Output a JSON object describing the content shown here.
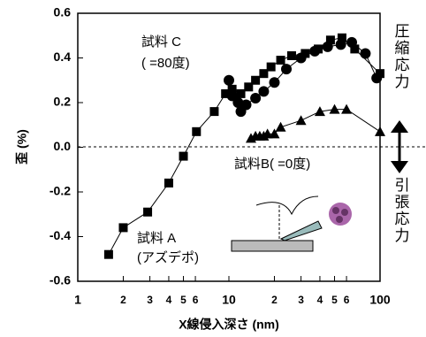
{
  "chart_data": {
    "type": "scatter",
    "y_label": "歪 (%)",
    "x_label": "X線侵入深さ (nm)",
    "log_x": true,
    "color": "#000000",
    "xlim": [
      1,
      100
    ],
    "ylim": [
      -0.6,
      0.6
    ],
    "xticks": [
      1,
      2,
      3,
      4,
      5,
      6,
      10,
      {
        "value": 20,
        "label": "2"
      },
      {
        "value": 30,
        "label": "3"
      },
      {
        "value": 40,
        "label": "4"
      },
      {
        "value": 50,
        "label": "5"
      },
      {
        "value": 60,
        "label": "6"
      },
      100
    ],
    "yticks": [
      -0.6,
      -0.4,
      -0.2,
      {
        "value": 0,
        "label": "0.0"
      },
      0.2,
      0.4,
      0.6
    ],
    "series": [
      {
        "marker": "square",
        "x": [
          1.6,
          2,
          2.9,
          4,
          5,
          6.1,
          8,
          9.5,
          10.5,
          12,
          13.5,
          15,
          17,
          19,
          22,
          26,
          32,
          39,
          47,
          56,
          68,
          100
        ],
        "values": [
          -0.48,
          -0.36,
          -0.29,
          -0.16,
          -0.04,
          0.07,
          0.16,
          0.24,
          0.26,
          0.24,
          0.27,
          0.3,
          0.33,
          0.36,
          0.39,
          0.41,
          0.42,
          0.44,
          0.48,
          0.49,
          0.44,
          0.33
        ]
      },
      {
        "marker": "circle",
        "x": [
          10,
          10.5,
          11.5,
          12,
          13,
          15,
          17,
          20,
          24,
          30,
          37,
          45,
          55,
          65,
          80,
          95
        ],
        "values": [
          0.3,
          0.23,
          0.2,
          0.16,
          0.19,
          0.22,
          0.25,
          0.29,
          0.35,
          0.4,
          0.43,
          0.45,
          0.46,
          0.47,
          0.42,
          0.31
        ]
      },
      {
        "marker": "triangle",
        "x": [
          14,
          15,
          16,
          17,
          18,
          20,
          22,
          30,
          40,
          50,
          60,
          100
        ],
        "values": [
          0.04,
          0.05,
          0.05,
          0.05,
          0.06,
          0.06,
          0.09,
          0.12,
          0.16,
          0.17,
          0.17,
          0.07
        ]
      }
    ],
    "annotations": [
      "試料 C",
      "(    =80度)",
      "試料B(    =0度)",
      "試料 A",
      "(アズデポ)",
      "圧縮応力",
      "引張応力"
    ]
  }
}
